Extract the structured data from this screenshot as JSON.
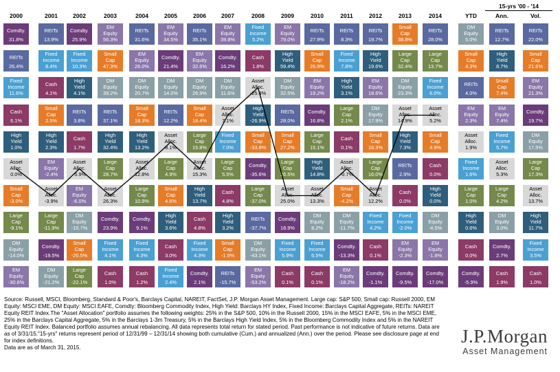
{
  "header": {
    "years": [
      "2000",
      "2001",
      "2002",
      "2003",
      "2004",
      "2005",
      "2006",
      "2007",
      "2008",
      "2009",
      "2010",
      "2011",
      "2012",
      "2013",
      "2014"
    ],
    "ytd": "YTD",
    "span_label": "15-yrs '00 - '14",
    "ann": "Ann.",
    "vol": "Vol."
  },
  "colors": {
    "Comdty.": "#6b3c79",
    "REITs": "#5a6aa0",
    "EM Equity": "#8a76a8",
    "Small Cap": "#e67c28",
    "Large Cap": "#74894b",
    "DM Equity": "#8aa0a6",
    "Fixed Income": "#4aa0d2",
    "High Yield": "#2f5e7c",
    "Cash": "#8c3a66",
    "Asset Alloc.": "#d8d8d8"
  },
  "chart_data": {
    "type": "table",
    "title": "",
    "columns": [
      {
        "header": "2000",
        "cells": [
          [
            "Comdty.",
            "31.8%"
          ],
          [
            "REITs",
            "26.4%"
          ],
          [
            "Fixed Income",
            "11.6%"
          ],
          [
            "Cash",
            "6.1%"
          ],
          [
            "High Yield",
            "1.0%"
          ],
          [
            "Asset Alloc.",
            "0.0%"
          ],
          [
            "Small Cap",
            "-3.0%"
          ],
          [
            "Large Cap",
            "-9.1%"
          ],
          [
            "DM Equity",
            "-14.0%"
          ],
          [
            "EM Equity",
            "-30.6%"
          ]
        ]
      },
      {
        "header": "2001",
        "cells": [
          [
            "REITs",
            "13.9%"
          ],
          [
            "Fixed Income",
            "8.4%"
          ],
          [
            "Cash",
            "4.1%"
          ],
          [
            "Small Cap",
            "2.5%"
          ],
          [
            "High Yield",
            "2.3%"
          ],
          [
            "EM Equity",
            "-2.4%"
          ],
          [
            "Asset Alloc.",
            "-3.9%"
          ],
          [
            "Large Cap",
            "-11.9%"
          ],
          [
            "Comdty.",
            "-19.5%"
          ],
          [
            "DM Equity",
            "-21.2%"
          ]
        ]
      },
      {
        "header": "2002",
        "cells": [
          [
            "Comdty.",
            "25.9%"
          ],
          [
            "Fixed Income",
            "10.3%"
          ],
          [
            "High Yield",
            "4.1%"
          ],
          [
            "REITs",
            "3.8%"
          ],
          [
            "Cash",
            "1.7%"
          ],
          [
            "Asset Alloc.",
            "-5.9%"
          ],
          [
            "EM Equity",
            "-6.0%"
          ],
          [
            "DM Equity",
            "-15.7%"
          ],
          [
            "Small Cap",
            "-20.5%"
          ],
          [
            "Large Cap",
            "-22.1%"
          ]
        ]
      },
      {
        "header": "2003",
        "cells": [
          [
            "EM Equity",
            "56.3%"
          ],
          [
            "Small Cap",
            "47.3%"
          ],
          [
            "DM Equity",
            "39.2%"
          ],
          [
            "REITs",
            "37.1%"
          ],
          [
            "High Yield",
            "32.4%"
          ],
          [
            "Large Cap",
            "28.7%"
          ],
          [
            "Asset Alloc.",
            "26.3%"
          ],
          [
            "Comdty.",
            "23.9%"
          ],
          [
            "Fixed Income",
            "4.1%"
          ],
          [
            "Cash",
            "1.0%"
          ]
        ]
      },
      {
        "header": "2004",
        "cells": [
          [
            "REITs",
            "31.6%"
          ],
          [
            "EM Equity",
            "26.0%"
          ],
          [
            "DM Equity",
            "20.7%"
          ],
          [
            "Small Cap",
            "18.3%"
          ],
          [
            "High Yield",
            "13.2%"
          ],
          [
            "Asset Alloc.",
            "12.8%"
          ],
          [
            "Large Cap",
            "10.9%"
          ],
          [
            "Comdty.",
            "9.1%"
          ],
          [
            "Fixed Income",
            "4.3%"
          ],
          [
            "Cash",
            "1.2%"
          ]
        ]
      },
      {
        "header": "2005",
        "cells": [
          [
            "EM Equity",
            "34.5%"
          ],
          [
            "Comdty.",
            "21.4%"
          ],
          [
            "DM Equity",
            "14.0%"
          ],
          [
            "REITs",
            "12.2%"
          ],
          [
            "Asset Alloc.",
            "8.1%"
          ],
          [
            "Large Cap",
            "4.9%"
          ],
          [
            "Small Cap",
            "4.6%"
          ],
          [
            "High Yield",
            "3.6%"
          ],
          [
            "Cash",
            "3.0%"
          ],
          [
            "Fixed Income",
            "2.4%"
          ]
        ]
      },
      {
        "header": "2006",
        "cells": [
          [
            "REITs",
            "35.1%"
          ],
          [
            "EM Equity",
            "32.6%"
          ],
          [
            "DM Equity",
            "26.9%"
          ],
          [
            "Small Cap",
            "18.4%"
          ],
          [
            "Large Cap",
            "15.8%"
          ],
          [
            "Asset Alloc.",
            "15.3%"
          ],
          [
            "High Yield",
            "13.7%"
          ],
          [
            "Cash",
            "4.8%"
          ],
          [
            "Fixed Income",
            "4.3%"
          ],
          [
            "Comdty.",
            "2.1%"
          ]
        ]
      },
      {
        "header": "2007",
        "cells": [
          [
            "EM Equity",
            "39.8%"
          ],
          [
            "Comdty.",
            "16.2%"
          ],
          [
            "DM Equity",
            "11.6%"
          ],
          [
            "Asset Alloc.",
            "7.1%"
          ],
          [
            "Fixed Income",
            "7.0%"
          ],
          [
            "Large Cap",
            "5.5%"
          ],
          [
            "Cash",
            "4.8%"
          ],
          [
            "High Yield",
            "3.2%"
          ],
          [
            "Small Cap",
            "-1.6%"
          ],
          [
            "REITs",
            "-15.7%"
          ]
        ]
      },
      {
        "header": "2008",
        "cells": [
          [
            "Fixed Income",
            "5.2%"
          ],
          [
            "Cash",
            "1.8%"
          ],
          [
            "Asset Alloc.",
            "-25.4%"
          ],
          [
            "High Yield",
            "-26.9%"
          ],
          [
            "Small Cap",
            "-33.8%"
          ],
          [
            "Comdty.",
            "-35.6%"
          ],
          [
            "Large Cap",
            "-37.0%"
          ],
          [
            "REITs",
            "-37.7%"
          ],
          [
            "DM Equity",
            "-43.1%"
          ],
          [
            "EM Equity",
            "-53.2%"
          ]
        ]
      },
      {
        "header": "2009",
        "cells": [
          [
            "EM Equity",
            "79.0%"
          ],
          [
            "High Yield",
            "59.4%"
          ],
          [
            "DM Equity",
            "32.5%"
          ],
          [
            "REITs",
            "28.0%"
          ],
          [
            "Small Cap",
            "27.2%"
          ],
          [
            "Large Cap",
            "26.5%"
          ],
          [
            "Asset Alloc.",
            "25.0%"
          ],
          [
            "Comdty.",
            "18.9%"
          ],
          [
            "Fixed Income",
            "5.9%"
          ],
          [
            "Cash",
            "0.1%"
          ]
        ]
      },
      {
        "header": "2010",
        "cells": [
          [
            "REITs",
            "27.9%"
          ],
          [
            "Small Cap",
            "26.9%"
          ],
          [
            "EM Equity",
            "19.2%"
          ],
          [
            "Comdty.",
            "16.8%"
          ],
          [
            "Large Cap",
            "15.1%"
          ],
          [
            "High Yield",
            "14.8%"
          ],
          [
            "Asset Alloc.",
            "13.3%"
          ],
          [
            "DM Equity",
            "8.2%"
          ],
          [
            "Fixed Income",
            "6.5%"
          ],
          [
            "Cash",
            "0.1%"
          ]
        ]
      },
      {
        "header": "2011",
        "cells": [
          [
            "REITs",
            "8.3%"
          ],
          [
            "Fixed Income",
            "7.8%"
          ],
          [
            "High Yield",
            "3.1%"
          ],
          [
            "Large Cap",
            "2.1%"
          ],
          [
            "Cash",
            "0.1%"
          ],
          [
            "Asset Alloc.",
            "-0.7%"
          ],
          [
            "Small Cap",
            "-4.2%"
          ],
          [
            "DM Equity",
            "-11.7%"
          ],
          [
            "Comdty.",
            "-13.3%"
          ],
          [
            "EM Equity",
            "-18.2%"
          ]
        ]
      },
      {
        "header": "2012",
        "cells": [
          [
            "REITs",
            "19.7%"
          ],
          [
            "High Yield",
            "19.6%"
          ],
          [
            "EM Equity",
            "18.6%"
          ],
          [
            "DM Equity",
            "17.9%"
          ],
          [
            "Small Cap",
            "16.3%"
          ],
          [
            "Large Cap",
            "16.0%"
          ],
          [
            "Asset Alloc.",
            "12.2%"
          ],
          [
            "Fixed Income",
            "4.2%"
          ],
          [
            "Cash",
            "0.1%"
          ],
          [
            "Comdty.",
            "-1.1%"
          ]
        ]
      },
      {
        "header": "2013",
        "cells": [
          [
            "Small Cap",
            "38.8%"
          ],
          [
            "Large Cap",
            "32.4%"
          ],
          [
            "DM Equity",
            "23.3%"
          ],
          [
            "Asset Alloc.",
            "14.9%"
          ],
          [
            "High Yield",
            "7.3%"
          ],
          [
            "REITs",
            "2.9%"
          ],
          [
            "Cash",
            "0.0%"
          ],
          [
            "Fixed Income",
            "-2.0%"
          ],
          [
            "EM Equity",
            "-2.3%"
          ],
          [
            "Comdty.",
            "-9.5%"
          ]
        ]
      },
      {
        "header": "2014",
        "cells": [
          [
            "REITs",
            "28.0%"
          ],
          [
            "Large Cap",
            "13.7%"
          ],
          [
            "Fixed Income",
            "6.0%"
          ],
          [
            "Asset Alloc.",
            "5.2%"
          ],
          [
            "Small Cap",
            "4.9%"
          ],
          [
            "Cash",
            "0.0%"
          ],
          [
            "High Yield",
            "0.0%"
          ],
          [
            "DM Equity",
            "-4.5%"
          ],
          [
            "EM Equity",
            "-1.8%"
          ],
          [
            "Comdty.",
            "-17.0%"
          ]
        ]
      },
      {
        "header": "YTD",
        "cells": [
          [
            "DM Equity",
            "5.0%"
          ],
          [
            "Small Cap",
            "4.3%"
          ],
          [
            "REITs",
            "4.0%"
          ],
          [
            "EM Equity",
            "2.3%"
          ],
          [
            "Asset Alloc.",
            "1.9%"
          ],
          [
            "Fixed Income",
            "1.6%"
          ],
          [
            "Large Cap",
            "1.0%"
          ],
          [
            "High Yield",
            "0.6%"
          ],
          [
            "Cash",
            "0.0%"
          ],
          [
            "Comdty.",
            "-5.9%"
          ]
        ]
      },
      {
        "header": "Ann.",
        "cells": [
          [
            "REITs",
            "12.7%"
          ],
          [
            "High Yield",
            "8.7%"
          ],
          [
            "Small Cap",
            "7.4%"
          ],
          [
            "EM Equity",
            "7.4%"
          ],
          [
            "Fixed Income",
            "5.7%"
          ],
          [
            "Asset Alloc.",
            "5.3%"
          ],
          [
            "Large Cap",
            "4.2%"
          ],
          [
            "DM Equity",
            "3.0%"
          ],
          [
            "Comdty.",
            "2.7%"
          ],
          [
            "Cash",
            "1.9%"
          ]
        ]
      },
      {
        "header": "Vol.",
        "cells": [
          [
            "REITs",
            "22.0%"
          ],
          [
            "Small Cap",
            "21.6%"
          ],
          [
            "EM Equity",
            "21.3%"
          ],
          [
            "Comdty.",
            "19.7%"
          ],
          [
            "DM Equity",
            "17.5%"
          ],
          [
            "Large Cap",
            "17.3%"
          ],
          [
            "Asset Alloc.",
            "13.7%"
          ],
          [
            "High Yield",
            "11.7%"
          ],
          [
            "Fixed Income",
            "3.5%"
          ],
          [
            "Cash",
            "1.0%"
          ]
        ]
      }
    ]
  },
  "footnote": "Source: Russell, MSCI, Bloomberg, Standard & Poor's, Barclays Capital, NAREIT, FactSet, J.P. Morgan Asset Management. Large cap: S&P 500, Small cap: Russell 2000, EM Equity: MSCI EME, DM Equity: MSCI EAFE, Comdty: Bloomberg Commodity Index, High Yield: Barclays HY Index, Fixed Income: Barclays Capital Aggregate, REITs: NAREIT Equity REIT Index.The \"Asset Allocation\" portfolio assumes the following weights: 25% in the S&P 500, 10% in the Russell 2000, 15% in the MSCI EAFE, 5% in the MSCI EME, 25% in the Barclays Capital Aggregate, 5% in the Barclays 1-3m Treasury, 5% in the Barclays High Yield Index, 5% in the Bloomberg Commodity Index and 5% in the NAREIT Equity REIT Index. Balanced portfolio assumes annual rebalancing. All data represents total return for stated period. Past performance is not indicative of future returns. Data are as of 3/31/15.\"15-yrs\" returns represent period of 12/31/99 – 12/31/14 showing both cumulative (Cum.) and annualized (Ann.) over the period. Please see disclosure page at end for index definitions.\nData are as of March 31, 2015.",
  "logo": {
    "main": "J.P.Morgan",
    "sub": "Asset Management"
  }
}
